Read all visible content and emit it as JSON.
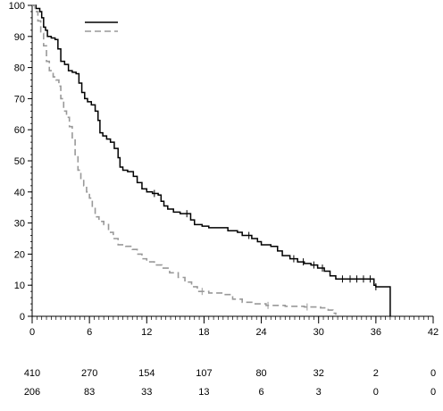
{
  "chart_data": {
    "type": "line",
    "title": "",
    "xlabel": "",
    "ylabel": "",
    "xlim": [
      0,
      42
    ],
    "ylim": [
      0,
      100
    ],
    "x_ticks": [
      0,
      6,
      12,
      18,
      24,
      30,
      36,
      42
    ],
    "y_ticks": [
      0,
      10,
      20,
      30,
      40,
      50,
      60,
      70,
      80,
      90,
      100
    ],
    "grid": false,
    "legend": {
      "placement": "top-left",
      "entries": [
        "",
        ""
      ]
    },
    "series": [
      {
        "style": "solid",
        "color": "#000000",
        "points": [
          [
            0,
            100
          ],
          [
            0.4,
            99
          ],
          [
            0.8,
            98
          ],
          [
            1.0,
            96
          ],
          [
            1.2,
            93
          ],
          [
            1.4,
            92
          ],
          [
            1.6,
            90
          ],
          [
            2.0,
            89.5
          ],
          [
            2.4,
            89
          ],
          [
            2.7,
            86
          ],
          [
            3.0,
            82
          ],
          [
            3.4,
            81
          ],
          [
            3.8,
            79
          ],
          [
            4.2,
            78.5
          ],
          [
            4.6,
            78
          ],
          [
            4.9,
            75
          ],
          [
            5.2,
            72
          ],
          [
            5.5,
            70
          ],
          [
            5.8,
            69
          ],
          [
            6.2,
            68
          ],
          [
            6.6,
            66
          ],
          [
            6.9,
            63
          ],
          [
            7.1,
            59
          ],
          [
            7.4,
            58
          ],
          [
            7.8,
            57
          ],
          [
            8.2,
            56
          ],
          [
            8.6,
            54
          ],
          [
            9.0,
            51
          ],
          [
            9.2,
            48
          ],
          [
            9.5,
            47
          ],
          [
            10.0,
            46.5
          ],
          [
            10.6,
            45
          ],
          [
            11.0,
            43
          ],
          [
            11.5,
            41
          ],
          [
            12.0,
            40
          ],
          [
            12.6,
            39.5
          ],
          [
            13.2,
            39
          ],
          [
            13.5,
            37
          ],
          [
            13.8,
            35.5
          ],
          [
            14.2,
            34.5
          ],
          [
            14.8,
            33.5
          ],
          [
            15.5,
            33
          ],
          [
            16.3,
            33
          ],
          [
            16.6,
            31
          ],
          [
            17.0,
            29.5
          ],
          [
            17.8,
            29
          ],
          [
            18.5,
            28.5
          ],
          [
            19.5,
            28.5
          ],
          [
            20.5,
            27.5
          ],
          [
            21.5,
            27
          ],
          [
            22.0,
            26
          ],
          [
            23.0,
            25
          ],
          [
            23.6,
            24
          ],
          [
            24.0,
            23
          ],
          [
            25.0,
            22.5
          ],
          [
            25.7,
            21
          ],
          [
            26.2,
            19.5
          ],
          [
            27.0,
            18.5
          ],
          [
            27.8,
            17.5
          ],
          [
            28.5,
            17
          ],
          [
            29.2,
            16.5
          ],
          [
            29.9,
            15.5
          ],
          [
            30.6,
            14.5
          ],
          [
            31.2,
            13
          ],
          [
            31.8,
            12
          ],
          [
            33.0,
            12
          ],
          [
            34.5,
            12
          ],
          [
            35.6,
            12
          ],
          [
            35.8,
            10
          ],
          [
            36.0,
            9.5
          ],
          [
            37.5,
            9.5
          ],
          [
            37.5,
            0
          ]
        ],
        "censor_x": [
          12.8,
          16.2,
          22.7,
          27.4,
          28.4,
          29.5,
          30.4,
          32.5,
          33.3,
          34.0,
          34.7,
          35.4,
          36.0
        ]
      },
      {
        "style": "dashed",
        "color": "#999999",
        "points": [
          [
            0,
            100
          ],
          [
            0.3,
            98
          ],
          [
            0.6,
            95
          ],
          [
            0.9,
            91
          ],
          [
            1.2,
            87
          ],
          [
            1.5,
            82
          ],
          [
            1.8,
            79
          ],
          [
            2.2,
            77
          ],
          [
            2.5,
            76
          ],
          [
            2.8,
            74
          ],
          [
            3.0,
            70
          ],
          [
            3.3,
            66
          ],
          [
            3.6,
            64
          ],
          [
            3.9,
            61
          ],
          [
            4.2,
            57
          ],
          [
            4.5,
            52
          ],
          [
            4.8,
            47
          ],
          [
            5.1,
            44
          ],
          [
            5.4,
            42
          ],
          [
            5.7,
            40
          ],
          [
            6.0,
            38
          ],
          [
            6.3,
            35
          ],
          [
            6.6,
            32
          ],
          [
            7.0,
            30.5
          ],
          [
            7.5,
            29.5
          ],
          [
            8.0,
            27
          ],
          [
            8.5,
            25
          ],
          [
            9.0,
            23
          ],
          [
            9.8,
            22.5
          ],
          [
            10.5,
            21.5
          ],
          [
            11.0,
            20
          ],
          [
            11.5,
            18.5
          ],
          [
            12.0,
            17.5
          ],
          [
            12.8,
            16.5
          ],
          [
            13.6,
            15.5
          ],
          [
            14.4,
            14
          ],
          [
            15.3,
            12.5
          ],
          [
            16.0,
            11
          ],
          [
            16.7,
            9.5
          ],
          [
            17.3,
            8
          ],
          [
            18.5,
            7.5
          ],
          [
            20.0,
            7
          ],
          [
            21.0,
            5.5
          ],
          [
            22.0,
            4.5
          ],
          [
            23.0,
            4
          ],
          [
            24.5,
            3.5
          ],
          [
            26.5,
            3.2
          ],
          [
            28.5,
            3
          ],
          [
            30.2,
            2.7
          ],
          [
            31.0,
            2
          ],
          [
            31.5,
            1
          ],
          [
            31.8,
            0.5
          ]
        ],
        "censor_x": [
          17.8,
          24.7,
          28.8
        ]
      }
    ],
    "risk_table": [
      [
        410,
        270,
        154,
        107,
        80,
        32,
        2,
        0
      ],
      [
        206,
        83,
        33,
        13,
        6,
        3,
        0,
        0
      ]
    ]
  }
}
